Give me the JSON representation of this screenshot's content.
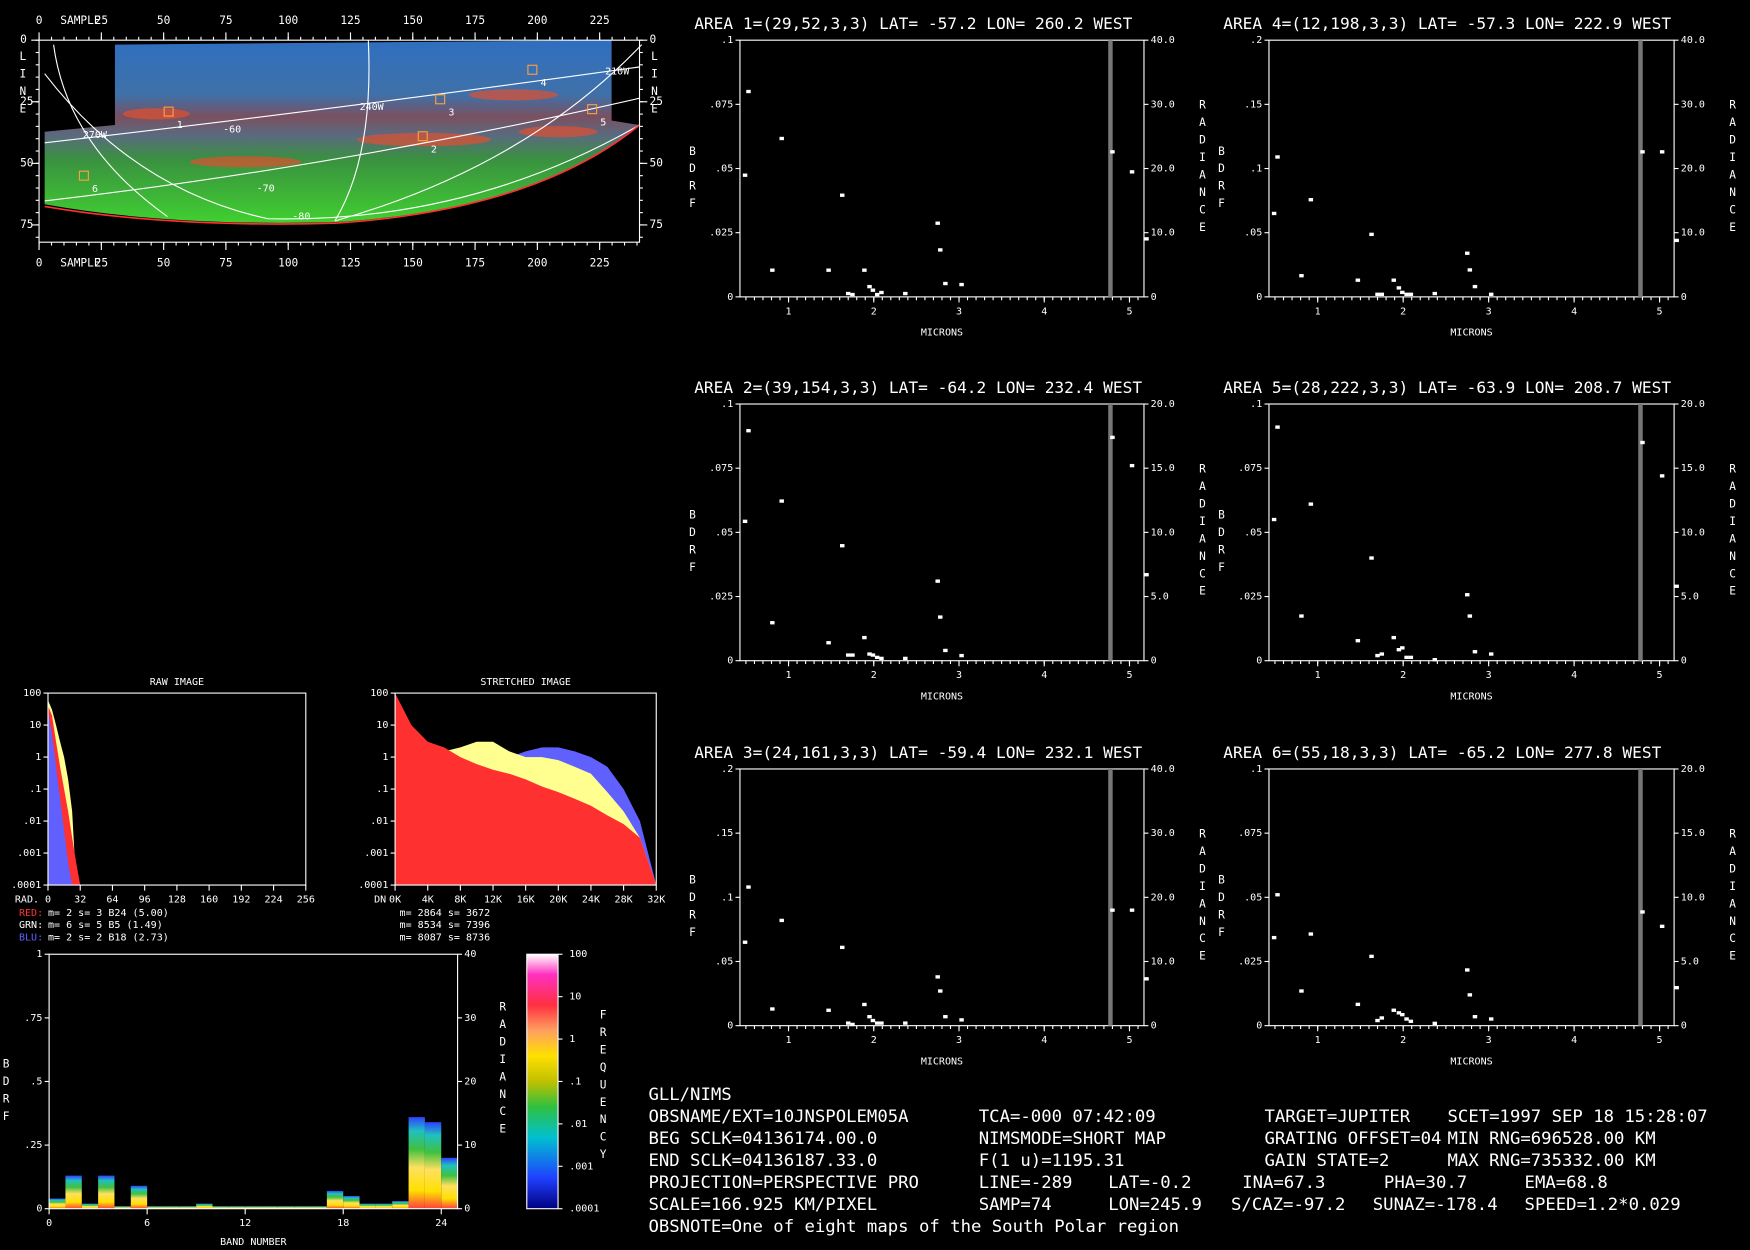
{
  "map": {
    "xlabel": "SAMPLE",
    "ylabel": "LINE",
    "xlim": [
      0,
      241
    ],
    "ylim": [
      0,
      82
    ],
    "xticks": [
      0,
      25,
      50,
      75,
      100,
      125,
      150,
      175,
      200,
      225
    ],
    "yticks": [
      0,
      25,
      50,
      75
    ],
    "grid_labels": [
      "210W",
      "240W",
      "270W",
      "-60",
      "-70",
      "-80"
    ],
    "area_labels": [
      "1",
      "2",
      "3",
      "4",
      "5",
      "6"
    ]
  },
  "chart_data": [
    {
      "type": "scatter",
      "title": "AREA 1=(29,52,3,3) LAT= -57.2 LON= 260.2 WEST",
      "xlabel": "MICRONS",
      "ylabel": "BDRF",
      "y2label": "RADIANCE",
      "xlim": [
        0.43,
        5.17
      ],
      "xticks": [
        1,
        2,
        3,
        4,
        5
      ],
      "ylim": [
        0,
        0.1
      ],
      "yticks": [
        0,
        {
          "value": 0.025,
          "label": ".025"
        },
        {
          "value": 0.05,
          "label": ".05"
        },
        {
          "value": 0.075,
          "label": ".075"
        },
        {
          "value": 0.1,
          "label": ".1"
        }
      ],
      "y2lim": [
        0,
        40
      ],
      "y2ticks": [
        0,
        {
          "value": 10,
          "label": "10.0"
        },
        {
          "value": 20,
          "label": "20.0"
        },
        {
          "value": 30,
          "label": "30.0"
        },
        {
          "value": 40,
          "label": "40.0"
        }
      ],
      "x": [
        0.49,
        0.53,
        0.81,
        0.92,
        1.47,
        1.63,
        1.7,
        1.75,
        1.89,
        1.95,
        1.99,
        2.04,
        2.09,
        2.37,
        2.75,
        2.78,
        2.84,
        3.03,
        4.8,
        5.03,
        5.2
      ],
      "series": [
        {
          "color": "#ffffff",
          "values": [
            0.0474,
            0.08,
            0.0104,
            0.0617,
            0.0104,
            0.0396,
            0.0013,
            0.0009,
            0.0104,
            0.004,
            0.0026,
            0.0009,
            0.0017,
            0.0013,
            0.0287,
            0.0183,
            0.0052,
            0.0048,
            0.0565,
            0.0487,
            0.0226
          ]
        }
      ]
    },
    {
      "type": "scatter",
      "title": "AREA 2=(39,154,3,3) LAT= -64.2 LON= 232.4 WEST",
      "xlabel": "MICRONS",
      "ylabel": "BDRF",
      "y2label": "RADIANCE",
      "xlim": [
        0.43,
        5.17
      ],
      "xticks": [
        1,
        2,
        3,
        4,
        5
      ],
      "ylim": [
        0,
        0.1
      ],
      "yticks": [
        0,
        {
          "value": 0.025,
          "label": ".025"
        },
        {
          "value": 0.05,
          "label": ".05"
        },
        {
          "value": 0.075,
          "label": ".075"
        },
        {
          "value": 0.1,
          "label": ".1"
        }
      ],
      "y2lim": [
        0,
        20
      ],
      "y2ticks": [
        0,
        {
          "value": 5,
          "label": "5.0"
        },
        {
          "value": 10,
          "label": "10.0"
        },
        {
          "value": 15,
          "label": "15.0"
        },
        {
          "value": 20,
          "label": "20.0"
        }
      ],
      "x": [
        0.49,
        0.53,
        0.81,
        0.92,
        1.47,
        1.63,
        1.7,
        1.75,
        1.89,
        1.95,
        1.99,
        2.04,
        2.09,
        2.37,
        2.75,
        2.78,
        2.84,
        3.03,
        4.8,
        5.03,
        5.2
      ],
      "series": [
        {
          "color": "#ffffff",
          "values": [
            0.0543,
            0.0896,
            0.0148,
            0.0622,
            0.007,
            0.0448,
            0.0022,
            0.0022,
            0.009,
            0.0026,
            0.0022,
            0.0013,
            0.0009,
            0.0009,
            0.031,
            0.017,
            0.004,
            0.002,
            0.087,
            0.076,
            0.0335
          ]
        }
      ]
    },
    {
      "type": "scatter",
      "title": "AREA 3=(24,161,3,3) LAT= -59.4 LON= 232.1 WEST",
      "xlabel": "MICRONS",
      "ylabel": "BDRF",
      "y2label": "RADIANCE",
      "xlim": [
        0.43,
        5.17
      ],
      "xticks": [
        1,
        2,
        3,
        4,
        5
      ],
      "ylim": [
        0,
        0.2
      ],
      "yticks": [
        0,
        {
          "value": 0.05,
          "label": ".05"
        },
        {
          "value": 0.1,
          "label": ".1"
        },
        {
          "value": 0.15,
          "label": ".15"
        },
        {
          "value": 0.2,
          "label": ".2"
        }
      ],
      "y2lim": [
        0,
        40
      ],
      "y2ticks": [
        0,
        {
          "value": 10,
          "label": "10.0"
        },
        {
          "value": 20,
          "label": "20.0"
        },
        {
          "value": 30,
          "label": "30.0"
        },
        {
          "value": 40,
          "label": "40.0"
        }
      ],
      "x": [
        0.49,
        0.53,
        0.81,
        0.92,
        1.47,
        1.63,
        1.7,
        1.75,
        1.89,
        1.95,
        1.99,
        2.04,
        2.09,
        2.37,
        2.75,
        2.78,
        2.84,
        3.03,
        4.8,
        5.03,
        5.2
      ],
      "series": [
        {
          "color": "#ffffff",
          "values": [
            0.065,
            0.108,
            0.013,
            0.082,
            0.012,
            0.061,
            0.002,
            0.001,
            0.0165,
            0.007,
            0.004,
            0.002,
            0.002,
            0.002,
            0.038,
            0.027,
            0.007,
            0.0045,
            0.09,
            0.09,
            0.0365
          ]
        }
      ]
    },
    {
      "type": "scatter",
      "title": "AREA 4=(12,198,3,3) LAT= -57.3 LON= 222.9 WEST",
      "xlabel": "MICRONS",
      "ylabel": "BDRF",
      "y2label": "RADIANCE",
      "xlim": [
        0.43,
        5.17
      ],
      "xticks": [
        1,
        2,
        3,
        4,
        5
      ],
      "ylim": [
        0,
        0.2
      ],
      "yticks": [
        0,
        {
          "value": 0.05,
          "label": ".05"
        },
        {
          "value": 0.1,
          "label": ".1"
        },
        {
          "value": 0.15,
          "label": ".15"
        },
        {
          "value": 0.2,
          "label": ".2"
        }
      ],
      "y2lim": [
        0,
        40
      ],
      "y2ticks": [
        0,
        {
          "value": 10,
          "label": "10.0"
        },
        {
          "value": 20,
          "label": "20.0"
        },
        {
          "value": 30,
          "label": "30.0"
        },
        {
          "value": 40,
          "label": "40.0"
        }
      ],
      "x": [
        0.49,
        0.53,
        0.81,
        0.92,
        1.47,
        1.63,
        1.7,
        1.75,
        1.89,
        1.95,
        1.99,
        2.04,
        2.09,
        2.37,
        2.75,
        2.78,
        2.84,
        3.03,
        4.8,
        5.03,
        5.2
      ],
      "series": [
        {
          "color": "#ffffff",
          "values": [
            0.065,
            0.109,
            0.0165,
            0.0757,
            0.013,
            0.0487,
            0.002,
            0.002,
            0.013,
            0.007,
            0.0035,
            0.002,
            0.002,
            0.0026,
            0.034,
            0.021,
            0.008,
            0.002,
            0.113,
            0.113,
            0.044
          ]
        }
      ]
    },
    {
      "type": "scatter",
      "title": "AREA 5=(28,222,3,3) LAT= -63.9 LON= 208.7 WEST",
      "xlabel": "MICRONS",
      "ylabel": "BDRF",
      "y2label": "RADIANCE",
      "xlim": [
        0.43,
        5.17
      ],
      "xticks": [
        1,
        2,
        3,
        4,
        5
      ],
      "ylim": [
        0,
        0.1
      ],
      "yticks": [
        0,
        {
          "value": 0.025,
          "label": ".025"
        },
        {
          "value": 0.05,
          "label": ".05"
        },
        {
          "value": 0.075,
          "label": ".075"
        },
        {
          "value": 0.1,
          "label": ".1"
        }
      ],
      "y2lim": [
        0,
        20
      ],
      "y2ticks": [
        0,
        {
          "value": 5,
          "label": "5.0"
        },
        {
          "value": 10,
          "label": "10.0"
        },
        {
          "value": 15,
          "label": "15.0"
        },
        {
          "value": 20,
          "label": "20.0"
        }
      ],
      "x": [
        0.49,
        0.53,
        0.81,
        0.92,
        1.47,
        1.63,
        1.7,
        1.75,
        1.89,
        1.95,
        1.99,
        2.04,
        2.09,
        2.37,
        2.75,
        2.78,
        2.84,
        3.03,
        4.8,
        5.03,
        5.2
      ],
      "series": [
        {
          "color": "#ffffff",
          "values": [
            0.055,
            0.091,
            0.0174,
            0.061,
            0.0078,
            0.04,
            0.002,
            0.0026,
            0.009,
            0.0043,
            0.005,
            0.0013,
            0.0013,
            0.0004,
            0.0257,
            0.0174,
            0.0035,
            0.0026,
            0.085,
            0.072,
            0.029
          ]
        }
      ]
    },
    {
      "type": "scatter",
      "title": "AREA 6=(55,18,3,3) LAT= -65.2 LON= 277.8 WEST",
      "xlabel": "MICRONS",
      "ylabel": "BDRF",
      "y2label": "RADIANCE",
      "xlim": [
        0.43,
        5.17
      ],
      "xticks": [
        1,
        2,
        3,
        4,
        5
      ],
      "ylim": [
        0,
        0.1
      ],
      "yticks": [
        0,
        {
          "value": 0.025,
          "label": ".025"
        },
        {
          "value": 0.05,
          "label": ".05"
        },
        {
          "value": 0.075,
          "label": ".075"
        },
        {
          "value": 0.1,
          "label": ".1"
        }
      ],
      "y2lim": [
        0,
        20
      ],
      "y2ticks": [
        0,
        {
          "value": 5,
          "label": "5.0"
        },
        {
          "value": 10,
          "label": "10.0"
        },
        {
          "value": 15,
          "label": "15.0"
        },
        {
          "value": 20,
          "label": "20.0"
        }
      ],
      "x": [
        0.49,
        0.53,
        0.81,
        0.92,
        1.47,
        1.63,
        1.7,
        1.75,
        1.89,
        1.95,
        1.99,
        2.04,
        2.09,
        2.37,
        2.75,
        2.78,
        2.84,
        3.03,
        4.8,
        5.03,
        5.2
      ],
      "series": [
        {
          "color": "#ffffff",
          "values": [
            0.0343,
            0.051,
            0.0135,
            0.0357,
            0.0083,
            0.027,
            0.002,
            0.003,
            0.006,
            0.005,
            0.0043,
            0.0026,
            0.0017,
            0.0009,
            0.0217,
            0.012,
            0.0035,
            0.0026,
            0.0443,
            0.0387,
            0.0148
          ]
        }
      ]
    },
    {
      "type": "area",
      "title": "RAW IMAGE",
      "xlabel": "RAD.",
      "yscale": "log",
      "xlim": [
        0,
        256
      ],
      "xticks": [
        0,
        32,
        64,
        96,
        128,
        160,
        192,
        224,
        256
      ],
      "ylim": [
        0.0001,
        100
      ],
      "yticks": [
        100,
        10,
        1,
        {
          "value": 0.1,
          "label": ".1"
        },
        {
          "value": 0.01,
          "label": ".01"
        },
        {
          "value": 0.001,
          "label": ".001"
        },
        {
          "value": 0.0001,
          "label": ".0001"
        }
      ],
      "x": [
        0,
        4,
        8,
        12,
        16,
        20,
        24,
        28,
        32
      ],
      "series": [
        {
          "color": "#ffff90",
          "values": [
            60,
            30,
            10,
            3,
            1,
            0.2,
            0.02,
            0.0001,
            0.0001
          ]
        },
        {
          "color": "#ff3030",
          "values": [
            40,
            20,
            3,
            0.5,
            0.1,
            0.02,
            0.003,
            0.0005,
            0.0001
          ]
        },
        {
          "color": "#6060ff",
          "values": [
            30,
            5,
            0.5,
            0.05,
            0.005,
            0.0005,
            0.0001,
            0.0001,
            0.0001
          ]
        }
      ],
      "stats_labels": [
        "RED:",
        "GRN:",
        "BLU:"
      ],
      "stats_colors": [
        "#ff3030",
        "#ffffff",
        "#6060ff"
      ],
      "stats": [
        "m=     2 s=     3 B24 (5.00)",
        "m=     6 s=     5 B5  (1.49)",
        "m=     2 s=     2 B18 (2.73)"
      ]
    },
    {
      "type": "area",
      "title": "STRETCHED IMAGE",
      "xlabel": "DN",
      "yscale": "log",
      "xlim": [
        0,
        32768
      ],
      "xticks": [
        {
          "value": 0,
          "label": "0K"
        },
        {
          "value": 4096,
          "label": "4K"
        },
        {
          "value": 8192,
          "label": "8K"
        },
        {
          "value": 12288,
          "label": "12K"
        },
        {
          "value": 16384,
          "label": "16K"
        },
        {
          "value": 20480,
          "label": "20K"
        },
        {
          "value": 24576,
          "label": "24K"
        },
        {
          "value": 28672,
          "label": "28K"
        },
        {
          "value": 32768,
          "label": "32K"
        }
      ],
      "ylim": [
        0.0001,
        100
      ],
      "yticks": [
        100,
        10,
        1,
        {
          "value": 0.1,
          "label": ".1"
        },
        {
          "value": 0.01,
          "label": ".01"
        },
        {
          "value": 0.001,
          "label": ".001"
        },
        {
          "value": 0.0001,
          "label": ".0001"
        }
      ],
      "x": [
        0,
        2048,
        4096,
        6144,
        8192,
        10240,
        12288,
        14336,
        16384,
        18432,
        20480,
        22528,
        24576,
        26624,
        28672,
        30720,
        32768
      ],
      "series": [
        {
          "color": "#6060ff",
          "values": [
            0.7,
            1.5,
            1.5,
            1,
            0.8,
            0.8,
            0.8,
            1,
            1.5,
            2,
            2,
            1.5,
            1,
            0.5,
            0.1,
            0.01,
            0.0001
          ]
        },
        {
          "color": "#ffff90",
          "values": [
            2,
            1.2,
            1,
            1.5,
            2,
            3,
            3,
            1.5,
            1,
            1,
            0.8,
            0.5,
            0.3,
            0.08,
            0.02,
            0.003,
            0.0001
          ]
        },
        {
          "color": "#ff3030",
          "values": [
            100,
            10,
            3,
            2,
            1,
            0.6,
            0.4,
            0.3,
            0.2,
            0.12,
            0.08,
            0.05,
            0.03,
            0.015,
            0.008,
            0.003,
            0.0001
          ]
        }
      ],
      "stats": [
        "m= 2864 s= 3672",
        "m= 8534 s= 7396",
        "m= 8087 s= 8736"
      ]
    },
    {
      "type": "bar",
      "xlabel": "BAND NUMBER",
      "ylabel": "BDRF",
      "y2label": "RADIANCE",
      "xlim": [
        0,
        25
      ],
      "xticks": [
        0,
        6,
        12,
        18,
        24
      ],
      "ylim": [
        0,
        1
      ],
      "yticks": [
        0,
        {
          "value": 0.25,
          "label": ".25"
        },
        {
          "value": 0.5,
          "label": ".5"
        },
        {
          "value": 0.75,
          "label": ".75"
        },
        1
      ],
      "y2lim": [
        0,
        40
      ],
      "y2ticks": [
        0,
        10,
        20,
        30,
        40
      ],
      "x": [
        0,
        1,
        2,
        3,
        4,
        5,
        6,
        7,
        8,
        9,
        10,
        11,
        12,
        13,
        14,
        15,
        16,
        17,
        18,
        19,
        20,
        21,
        22,
        23,
        24
      ],
      "values": [
        0.04,
        0.13,
        0.02,
        0.13,
        0.01,
        0.09,
        0.01,
        0.01,
        0.01,
        0.02,
        0.01,
        0.01,
        0.01,
        0.01,
        0.01,
        0.01,
        0.01,
        0.07,
        0.05,
        0.02,
        0.02,
        0.03,
        0.36,
        0.34,
        0.2
      ],
      "colorbar": {
        "label": "FREQUENCY",
        "lim": [
          0.0001,
          100
        ],
        "ticks": [
          100,
          10,
          1,
          {
            "value": 0.1,
            "label": ".1"
          },
          {
            "value": 0.01,
            "label": ".01"
          },
          {
            "value": 0.001,
            "label": ".001"
          },
          {
            "value": 0.0001,
            "label": ".0001"
          }
        ]
      }
    }
  ],
  "info": {
    "rows": [
      [
        "GLL/NIMS"
      ],
      [
        "OBSNAME/EXT=10JNSPOLEM05A",
        "TCA=-000 07:42:09",
        "TARGET=JUPITER",
        "SCET=1997 SEP 18 15:28:07"
      ],
      [
        "BEG SCLK=04136174.00.0",
        "NIMSMODE=SHORT MAP",
        "GRATING OFFSET=04",
        "MIN RNG=696528.00 KM"
      ],
      [
        "END SCLK=04136187.33.0",
        "F(1 u)=1195.31",
        "GAIN STATE=2",
        "MAX RNG=735332.00 KM"
      ],
      [
        "PROJECTION=PERSPECTIVE PRO",
        "LINE=-289",
        "LAT=-0.2",
        "INA=67.3",
        "PHA=30.7",
        "EMA=68.8"
      ],
      [
        "SCALE=166.925 KM/PIXEL",
        "SAMP=74",
        "LON=245.9",
        "S/CAZ=-97.2",
        "SUNAZ=-178.4",
        "SPEED=1.2*0.029"
      ],
      [
        "OBSNOTE=One of eight maps of the South Polar region"
      ]
    ]
  }
}
